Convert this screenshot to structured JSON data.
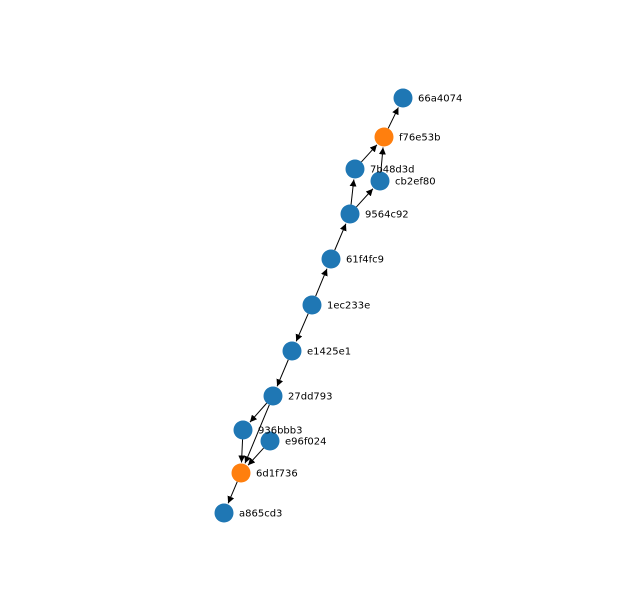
{
  "graph": {
    "colors": {
      "blue_node": "#1f77b4",
      "orange_node": "#ff7f0e",
      "edge": "#000000"
    },
    "nodes": [
      {
        "id": "66a4074",
        "label": "66a4074",
        "color": "blue"
      },
      {
        "id": "f76e53b",
        "label": "f76e53b",
        "color": "orange"
      },
      {
        "id": "7b48d3d",
        "label": "7b48d3d",
        "color": "blue"
      },
      {
        "id": "cb2ef80",
        "label": "cb2ef80",
        "color": "blue"
      },
      {
        "id": "9564c92",
        "label": "9564c92",
        "color": "blue"
      },
      {
        "id": "61f4fc9",
        "label": "61f4fc9",
        "color": "blue"
      },
      {
        "id": "1ec233e",
        "label": "1ec233e",
        "color": "blue"
      },
      {
        "id": "e1425e1",
        "label": "e1425e1",
        "color": "blue"
      },
      {
        "id": "27dd793",
        "label": "27dd793",
        "color": "blue"
      },
      {
        "id": "936bbb3",
        "label": "936bbb3",
        "color": "blue"
      },
      {
        "id": "e96f024",
        "label": "e96f024",
        "color": "blue"
      },
      {
        "id": "6d1f736",
        "label": "6d1f736",
        "color": "orange"
      },
      {
        "id": "a865cd3",
        "label": "a865cd3",
        "color": "blue"
      }
    ],
    "edges": [
      {
        "from": "f76e53b",
        "to": "66a4074"
      },
      {
        "from": "7b48d3d",
        "to": "f76e53b"
      },
      {
        "from": "cb2ef80",
        "to": "f76e53b"
      },
      {
        "from": "9564c92",
        "to": "7b48d3d"
      },
      {
        "from": "9564c92",
        "to": "cb2ef80"
      },
      {
        "from": "61f4fc9",
        "to": "9564c92"
      },
      {
        "from": "1ec233e",
        "to": "61f4fc9"
      },
      {
        "from": "1ec233e",
        "to": "e1425e1"
      },
      {
        "from": "e1425e1",
        "to": "27dd793"
      },
      {
        "from": "27dd793",
        "to": "936bbb3"
      },
      {
        "from": "27dd793",
        "to": "6d1f736"
      },
      {
        "from": "936bbb3",
        "to": "6d1f736"
      },
      {
        "from": "e96f024",
        "to": "6d1f736"
      },
      {
        "from": "6d1f736",
        "to": "a865cd3"
      }
    ]
  }
}
